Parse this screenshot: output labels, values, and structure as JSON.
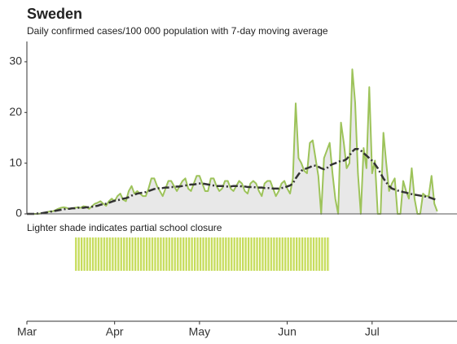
{
  "chart_data": {
    "type": "line",
    "title": "Sweden",
    "subtitle": "Daily confirmed cases/100 000 population with 7-day moving average",
    "x": [
      0,
      1,
      2,
      3,
      4,
      5,
      6,
      7,
      8,
      9,
      10,
      11,
      12,
      13,
      14,
      15,
      16,
      17,
      18,
      19,
      20,
      21,
      22,
      23,
      24,
      25,
      26,
      27,
      28,
      29,
      30,
      31,
      32,
      33,
      34,
      35,
      36,
      37,
      38,
      39,
      40,
      41,
      42,
      43,
      44,
      45,
      46,
      47,
      48,
      49,
      50,
      51,
      52,
      53,
      54,
      55,
      56,
      57,
      58,
      59,
      60,
      61,
      62,
      63,
      64,
      65,
      66,
      67,
      68,
      69,
      70,
      71,
      72,
      73,
      74,
      75,
      76,
      77,
      78,
      79,
      80,
      81,
      82,
      83,
      84,
      85,
      86,
      87,
      88,
      89,
      90,
      91,
      92,
      93,
      94,
      95,
      96,
      97,
      98,
      99,
      100,
      101,
      102,
      103,
      104,
      105,
      106,
      107,
      108,
      109,
      110,
      111,
      112,
      113,
      114,
      115,
      116,
      117,
      118,
      119,
      120,
      121,
      122,
      123,
      124,
      125,
      126,
      127,
      128,
      129,
      130,
      131,
      132,
      133,
      134,
      135,
      136,
      137,
      138,
      139,
      140,
      141,
      142,
      143,
      144,
      145
    ],
    "series": [
      {
        "color": "#9dc35a",
        "fill": "#e8e8e8",
        "style": "solid",
        "values": [
          0,
          0,
          0,
          0,
          0,
          0.1,
          0.2,
          0.3,
          0.5,
          0.5,
          0.7,
          1.0,
          1.2,
          1.3,
          1.2,
          1.0,
          1.1,
          1.2,
          1.3,
          1.2,
          1.5,
          1.4,
          1.0,
          1.5,
          2.0,
          2.2,
          2.5,
          2.0,
          1.6,
          2.5,
          3.0,
          2.5,
          3.5,
          4.0,
          2.8,
          2.5,
          4.5,
          5.5,
          4.0,
          4.5,
          4.0,
          3.5,
          3.5,
          5.0,
          7.0,
          7.0,
          5.5,
          4.5,
          3.5,
          5.0,
          6.5,
          6.5,
          5.5,
          4.5,
          5.5,
          6.5,
          7.0,
          5.0,
          4.5,
          6.0,
          7.5,
          7.5,
          6.0,
          4.5,
          4.5,
          7.0,
          7.0,
          5.5,
          4.5,
          5.0,
          6.5,
          6.5,
          5.0,
          4.5,
          5.5,
          6.5,
          6.0,
          4.5,
          4.0,
          6.0,
          6.5,
          6.0,
          4.5,
          3.5,
          6.0,
          6.5,
          6.5,
          5.0,
          3.5,
          4.5,
          6.0,
          6.5,
          5.0,
          4.0,
          7.0,
          21.8,
          11.0,
          10.0,
          8.5,
          8.0,
          14.0,
          14.5,
          11.0,
          7.5,
          0,
          11.0,
          12.5,
          14.0,
          8.0,
          3.0,
          0,
          18.0,
          14.0,
          9.0,
          10.0,
          28.5,
          22.0,
          8.0,
          0,
          13.0,
          9.0,
          25.0,
          8.0,
          10.5,
          0,
          0,
          16.0,
          10.0,
          4.5,
          6.0,
          7.0,
          0,
          0,
          6.5,
          4.5,
          3.0,
          9.0,
          3.0,
          0,
          0,
          4.0,
          3.5,
          3.5,
          7.5,
          2.0,
          0.5
        ]
      },
      {
        "color": "#333333",
        "style": "dashdot",
        "values": [
          0,
          0,
          0,
          0,
          0.1,
          0.1,
          0.2,
          0.3,
          0.4,
          0.5,
          0.6,
          0.7,
          0.8,
          0.9,
          1.0,
          1.0,
          1.1,
          1.1,
          1.2,
          1.2,
          1.2,
          1.3,
          1.3,
          1.4,
          1.5,
          1.6,
          1.8,
          1.9,
          2.0,
          2.2,
          2.4,
          2.6,
          2.7,
          2.8,
          3.0,
          3.1,
          3.3,
          3.6,
          3.8,
          4.0,
          4.1,
          4.2,
          4.3,
          4.5,
          4.7,
          4.9,
          5.0,
          5.1,
          5.1,
          5.2,
          5.2,
          5.3,
          5.3,
          5.4,
          5.4,
          5.5,
          5.6,
          5.7,
          5.8,
          5.8,
          5.9,
          6.0,
          6.0,
          5.9,
          5.8,
          5.7,
          5.6,
          5.5,
          5.5,
          5.5,
          5.4,
          5.4,
          5.4,
          5.5,
          5.5,
          5.5,
          5.4,
          5.4,
          5.3,
          5.3,
          5.3,
          5.2,
          5.2,
          5.2,
          5.1,
          5.1,
          5.1,
          5.0,
          5.0,
          5.0,
          5.1,
          5.2,
          5.4,
          5.6,
          6.0,
          7.0,
          7.8,
          8.5,
          8.8,
          9.0,
          9.2,
          9.5,
          9.5,
          9.3,
          9.0,
          8.8,
          9.0,
          9.5,
          9.8,
          10.0,
          10.2,
          10.5,
          10.5,
          10.8,
          11.5,
          12.3,
          12.8,
          12.8,
          12.5,
          12.0,
          11.5,
          11.0,
          10.5,
          9.8,
          9.0,
          8.0,
          7.0,
          6.2,
          5.5,
          5.0,
          4.8,
          4.6,
          4.5,
          4.3,
          4.2,
          4.0,
          3.9,
          3.8,
          3.7,
          3.6,
          3.5,
          3.4,
          3.3,
          3.1,
          2.9,
          2.7
        ]
      }
    ],
    "xlim": [
      0,
      152
    ],
    "xticks": [
      {
        "value": 0,
        "label": "Mar"
      },
      {
        "value": 31,
        "label": "Apr"
      },
      {
        "value": 61,
        "label": "May"
      },
      {
        "value": 92,
        "label": "Jun"
      },
      {
        "value": 122,
        "label": "Jul"
      }
    ],
    "ylim": [
      0,
      34
    ],
    "yticks": [
      0,
      10,
      20,
      30
    ],
    "annotation": "Lighter shade indicates partial school closure",
    "shade": {
      "start": 17,
      "end": 107,
      "color": "#c6dc5a"
    }
  }
}
